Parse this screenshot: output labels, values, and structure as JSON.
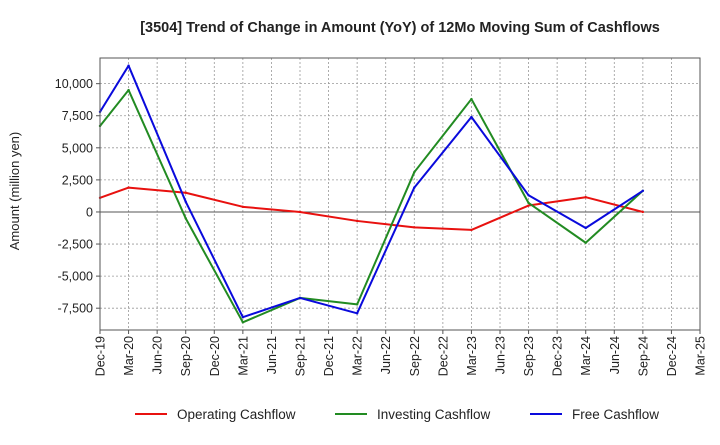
{
  "chart_data": {
    "type": "line",
    "title": "[3504]  Trend of Change in Amount (YoY) of 12Mo Moving Sum of Cashflows",
    "xlabel": "",
    "ylabel": "Amount (million yen)",
    "categories": [
      "Dec-19",
      "Mar-20",
      "Jun-20",
      "Sep-20",
      "Dec-20",
      "Mar-21",
      "Jun-21",
      "Sep-21",
      "Dec-21",
      "Mar-22",
      "Jun-22",
      "Sep-22",
      "Dec-22",
      "Mar-23",
      "Jun-23",
      "Sep-23",
      "Dec-23",
      "Mar-24",
      "Jun-24",
      "Sep-24",
      "Dec-24",
      "Mar-25"
    ],
    "yticks": [
      -7500,
      -5000,
      -2500,
      0,
      2500,
      5000,
      7500,
      10000
    ],
    "ytick_labels": [
      "-7,500",
      "-5,000",
      "-2,500",
      "0",
      "2,500",
      "5,000",
      "7,500",
      "10,000"
    ],
    "ylim": [
      -9200,
      12000
    ],
    "grid": true,
    "legend_position": "bottom",
    "series": [
      {
        "name": "Operating Cashflow",
        "color": "#e8110f",
        "values": [
          1100,
          1900,
          null,
          1500,
          null,
          400,
          null,
          0,
          null,
          -700,
          null,
          -1200,
          null,
          -1400,
          null,
          500,
          null,
          1150,
          null,
          0,
          null,
          null
        ]
      },
      {
        "name": "Investing Cashflow",
        "color": "#228b22",
        "values": [
          6700,
          9500,
          null,
          -500,
          null,
          -8600,
          null,
          -6700,
          null,
          -7200,
          null,
          3100,
          null,
          8800,
          null,
          700,
          null,
          -2400,
          null,
          1650,
          null,
          null
        ]
      },
      {
        "name": "Free Cashflow",
        "color": "#0a0adc",
        "values": [
          7800,
          11400,
          null,
          800,
          null,
          -8200,
          null,
          -6700,
          null,
          -7900,
          null,
          1900,
          null,
          7400,
          null,
          1300,
          null,
          -1250,
          null,
          1650,
          null,
          null
        ]
      }
    ]
  }
}
